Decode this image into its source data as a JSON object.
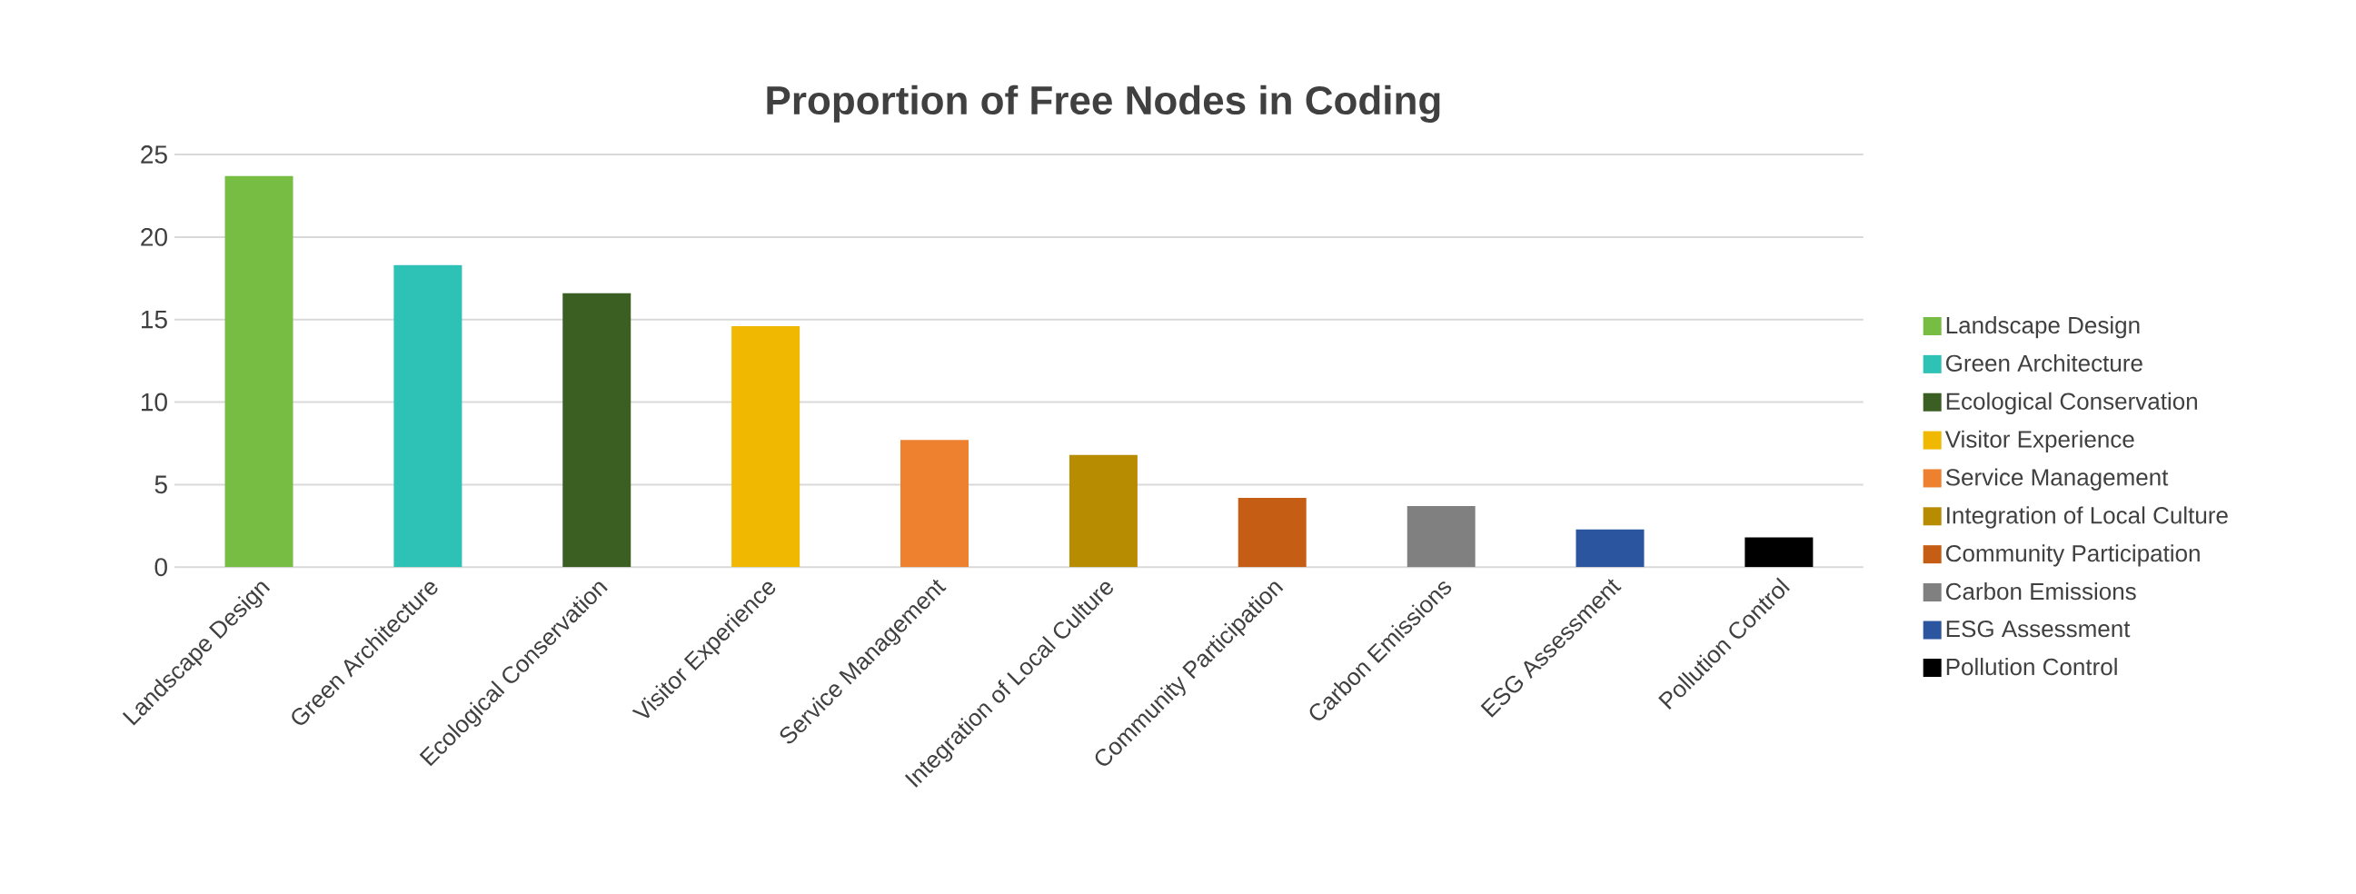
{
  "chart_data": {
    "type": "bar",
    "title": "Proportion of Free Nodes in Coding",
    "categories": [
      "Landscape Design",
      "Green Architecture",
      "Ecological Conservation",
      "Visitor Experience",
      "Service Management",
      "Integration of Local Culture",
      "Community Participation",
      "Carbon Emissions",
      "ESG Assessment",
      "Pollution Control"
    ],
    "series": [
      {
        "name": "Landscape Design",
        "color": "#77bc43",
        "values": [
          23.7,
          null,
          null,
          null,
          null,
          null,
          null,
          null,
          null,
          null
        ]
      },
      {
        "name": "Green Architecture",
        "color": "#2ec1b5",
        "values": [
          null,
          18.3,
          null,
          null,
          null,
          null,
          null,
          null,
          null,
          null
        ]
      },
      {
        "name": "Ecological Conservation",
        "color": "#3b5e22",
        "values": [
          null,
          null,
          16.6,
          null,
          null,
          null,
          null,
          null,
          null,
          null
        ]
      },
      {
        "name": "Visitor Experience",
        "color": "#f0b800",
        "values": [
          null,
          null,
          null,
          14.6,
          null,
          null,
          null,
          null,
          null,
          null
        ]
      },
      {
        "name": "Service Management",
        "color": "#ee8130",
        "values": [
          null,
          null,
          null,
          null,
          7.7,
          null,
          null,
          null,
          null,
          null
        ]
      },
      {
        "name": "Integration of Local Culture",
        "color": "#b88c00",
        "values": [
          null,
          null,
          null,
          null,
          null,
          6.8,
          null,
          null,
          null,
          null
        ]
      },
      {
        "name": "Community Participation",
        "color": "#c55e14",
        "values": [
          null,
          null,
          null,
          null,
          null,
          null,
          4.2,
          null,
          null,
          null
        ]
      },
      {
        "name": "Carbon Emissions",
        "color": "#808080",
        "values": [
          null,
          null,
          null,
          null,
          null,
          null,
          null,
          3.7,
          null,
          null
        ]
      },
      {
        "name": "ESG Assessment",
        "color": "#2c55a0",
        "values": [
          null,
          null,
          null,
          null,
          null,
          null,
          null,
          null,
          2.3,
          null
        ]
      },
      {
        "name": "Pollution Control",
        "color": "#000000",
        "values": [
          null,
          null,
          null,
          null,
          null,
          null,
          null,
          null,
          null,
          1.8
        ]
      }
    ],
    "ylim": [
      0,
      25
    ],
    "yticks": [
      0,
      5,
      10,
      15,
      20,
      25
    ],
    "grid": "y",
    "legend": "right"
  }
}
